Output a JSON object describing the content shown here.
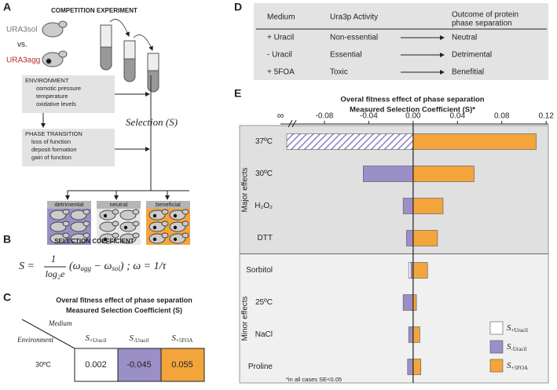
{
  "panel_a": {
    "letter": "A",
    "title": "COMPETITION EXPERIMENT",
    "strain_sol": "URA3sol",
    "versus": "vs.",
    "strain_agg": "URA3agg",
    "environment": {
      "title": "ENVIRONMENT",
      "lines": [
        "osmotic pressure",
        "temperature",
        "oxidative levels"
      ]
    },
    "phase_transition": {
      "title": "PHASE TRANSITION",
      "lines": [
        "loss of function",
        "deposit formation",
        "gain of function"
      ]
    },
    "selection": "Selection (S)",
    "outcomes": [
      {
        "label": "detrimental",
        "color": "#9b8fc7"
      },
      {
        "label": "neutral",
        "color": "#e8e8e8"
      },
      {
        "label": "beneficial",
        "color": "#f3a53c"
      }
    ]
  },
  "panel_b": {
    "letter": "B",
    "title": "SELECTION COEFFICIENT",
    "formula": [
      "S =",
      "1",
      "log₂e",
      "(ω",
      "agg",
      " − ω",
      "sol",
      ")",
      " ;  ω = 1/τ"
    ]
  },
  "panel_c": {
    "letter": "C",
    "title": "Overal fitness effect of phase separation",
    "subtitle": "Measured Selection Coefficient (S)",
    "column_axis": "Medium",
    "row_axis": "Environment",
    "columns": [
      {
        "symbol": "S",
        "sub": "+Uracil",
        "color": "#ffffff"
      },
      {
        "symbol": "S",
        "sub": "-Uracil",
        "color": "#9b8fc7"
      },
      {
        "symbol": "S",
        "sub": "+5FOA",
        "color": "#f3a53c"
      }
    ],
    "rows": [
      {
        "label": "30ºC",
        "cells": [
          "0.002",
          "-0.045",
          "0.055"
        ]
      }
    ]
  },
  "panel_d": {
    "letter": "D",
    "headers": [
      "Medium",
      "Ura3p Activity",
      [
        "Outcome of protein",
        "phase separation"
      ]
    ],
    "rows": [
      [
        "+ Uracil",
        "Non-essential",
        "Neutral"
      ],
      [
        "-  Uracil",
        "Essential",
        "Detrimental"
      ],
      [
        "+ 5FOA",
        "Toxic",
        "Benefitial"
      ]
    ]
  },
  "panel_e": {
    "letter": "E"
  },
  "chart_data": {
    "type": "hbar",
    "title": "Overal fitness effect of phase separation",
    "subtitle": "Measured Selection Coefficient (S)*",
    "groups": [
      {
        "name": "Major effects",
        "color": "#e0e0e0",
        "categories": [
          "37ºC",
          "30ºC",
          "H₂O₂",
          "DTT"
        ]
      },
      {
        "name": "Minor effects",
        "color": "#f0f0f0",
        "categories": [
          "Sorbitol",
          "25ºC",
          "NaCl",
          "Proline"
        ]
      }
    ],
    "series": [
      {
        "name": "S",
        "name_sub": "+Uracil",
        "color": "#ffffff",
        "values": [
          0,
          0.002,
          0.001,
          0,
          -0.004,
          -0.002,
          0,
          0
        ]
      },
      {
        "name": "S",
        "name_sub": "-Uracil",
        "color": "#9b8fc7",
        "values": [
          null,
          -0.045,
          -0.009,
          -0.006,
          -0.002,
          -0.009,
          -0.004,
          -0.005
        ]
      },
      {
        "name": "S",
        "name_sub": "+5FOA",
        "color": "#f3a53c",
        "values": [
          0.111,
          0.055,
          0.027,
          0.022,
          0.013,
          0.003,
          0.006,
          0.007
        ]
      }
    ],
    "off_scale": {
      "series": 1,
      "index": 0,
      "label": "∞"
    },
    "xlim": [
      -0.114,
      0.122
    ],
    "xticks": [
      -0.08,
      -0.04,
      {
        "value": 0,
        "label": "0.00"
      },
      0.04,
      0.08,
      0.12
    ],
    "footnote": "*in all cases SE<0.05",
    "legend": "lower right"
  }
}
